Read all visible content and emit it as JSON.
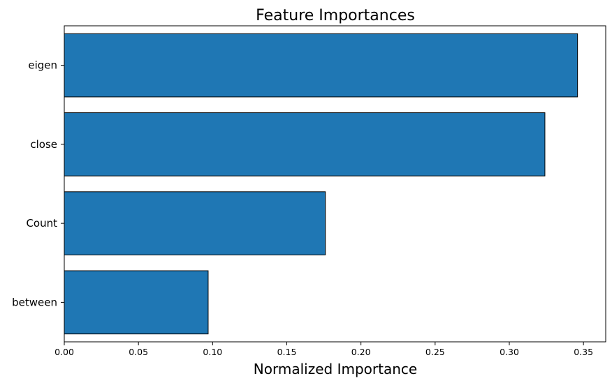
{
  "chart_data": {
    "type": "bar",
    "orientation": "horizontal",
    "title": "Feature Importances",
    "xlabel": "Normalized Importance",
    "ylabel": "",
    "categories": [
      "eigen",
      "close",
      "Count",
      "between"
    ],
    "values": [
      0.346,
      0.324,
      0.176,
      0.097
    ],
    "xlim": [
      0.0,
      0.365
    ],
    "xticks": [
      0.0,
      0.05,
      0.1,
      0.15,
      0.2,
      0.25,
      0.3,
      0.35
    ],
    "xtick_labels": [
      "0.00",
      "0.05",
      "0.10",
      "0.15",
      "0.20",
      "0.25",
      "0.30",
      "0.35"
    ],
    "grid": false,
    "legend": "none",
    "bar_color": "#1f77b4",
    "edge_color": "#000000"
  }
}
